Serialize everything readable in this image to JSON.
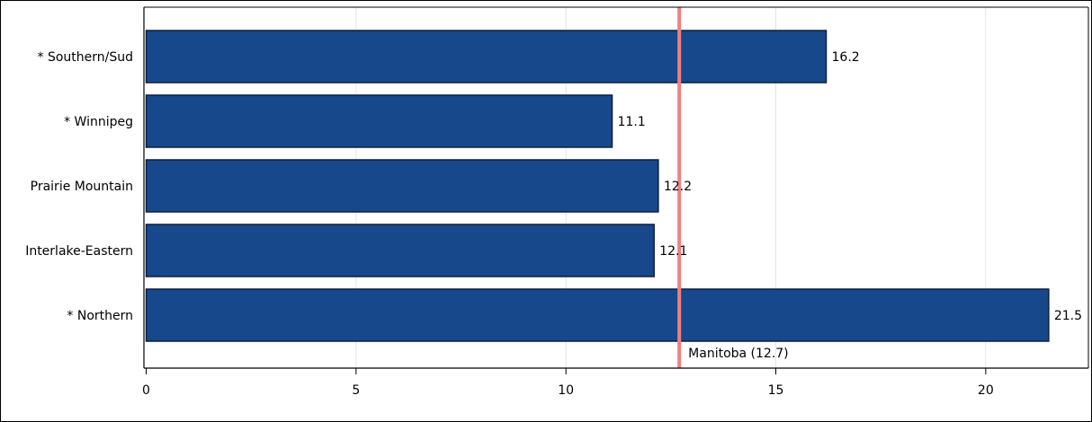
{
  "chart_data": {
    "type": "bar",
    "orientation": "horizontal",
    "categories": [
      "* Southern/Sud",
      "* Winnipeg",
      "Prairie Mountain",
      "Interlake-Eastern",
      "* Northern"
    ],
    "values": [
      16.2,
      11.1,
      12.2,
      12.1,
      21.5
    ],
    "value_labels": [
      "16.2",
      "11.1",
      "12.2",
      "12.1",
      "21.5"
    ],
    "xlim": [
      0,
      22.5
    ],
    "xticks": [
      0,
      5,
      10,
      15,
      20
    ],
    "grid": true,
    "reference_line": {
      "value": 12.7,
      "label": "Manitoba (12.7)",
      "color": "#f08080"
    },
    "bar_color": "#17488b",
    "bar_edge_color": "#0d1f3c"
  }
}
